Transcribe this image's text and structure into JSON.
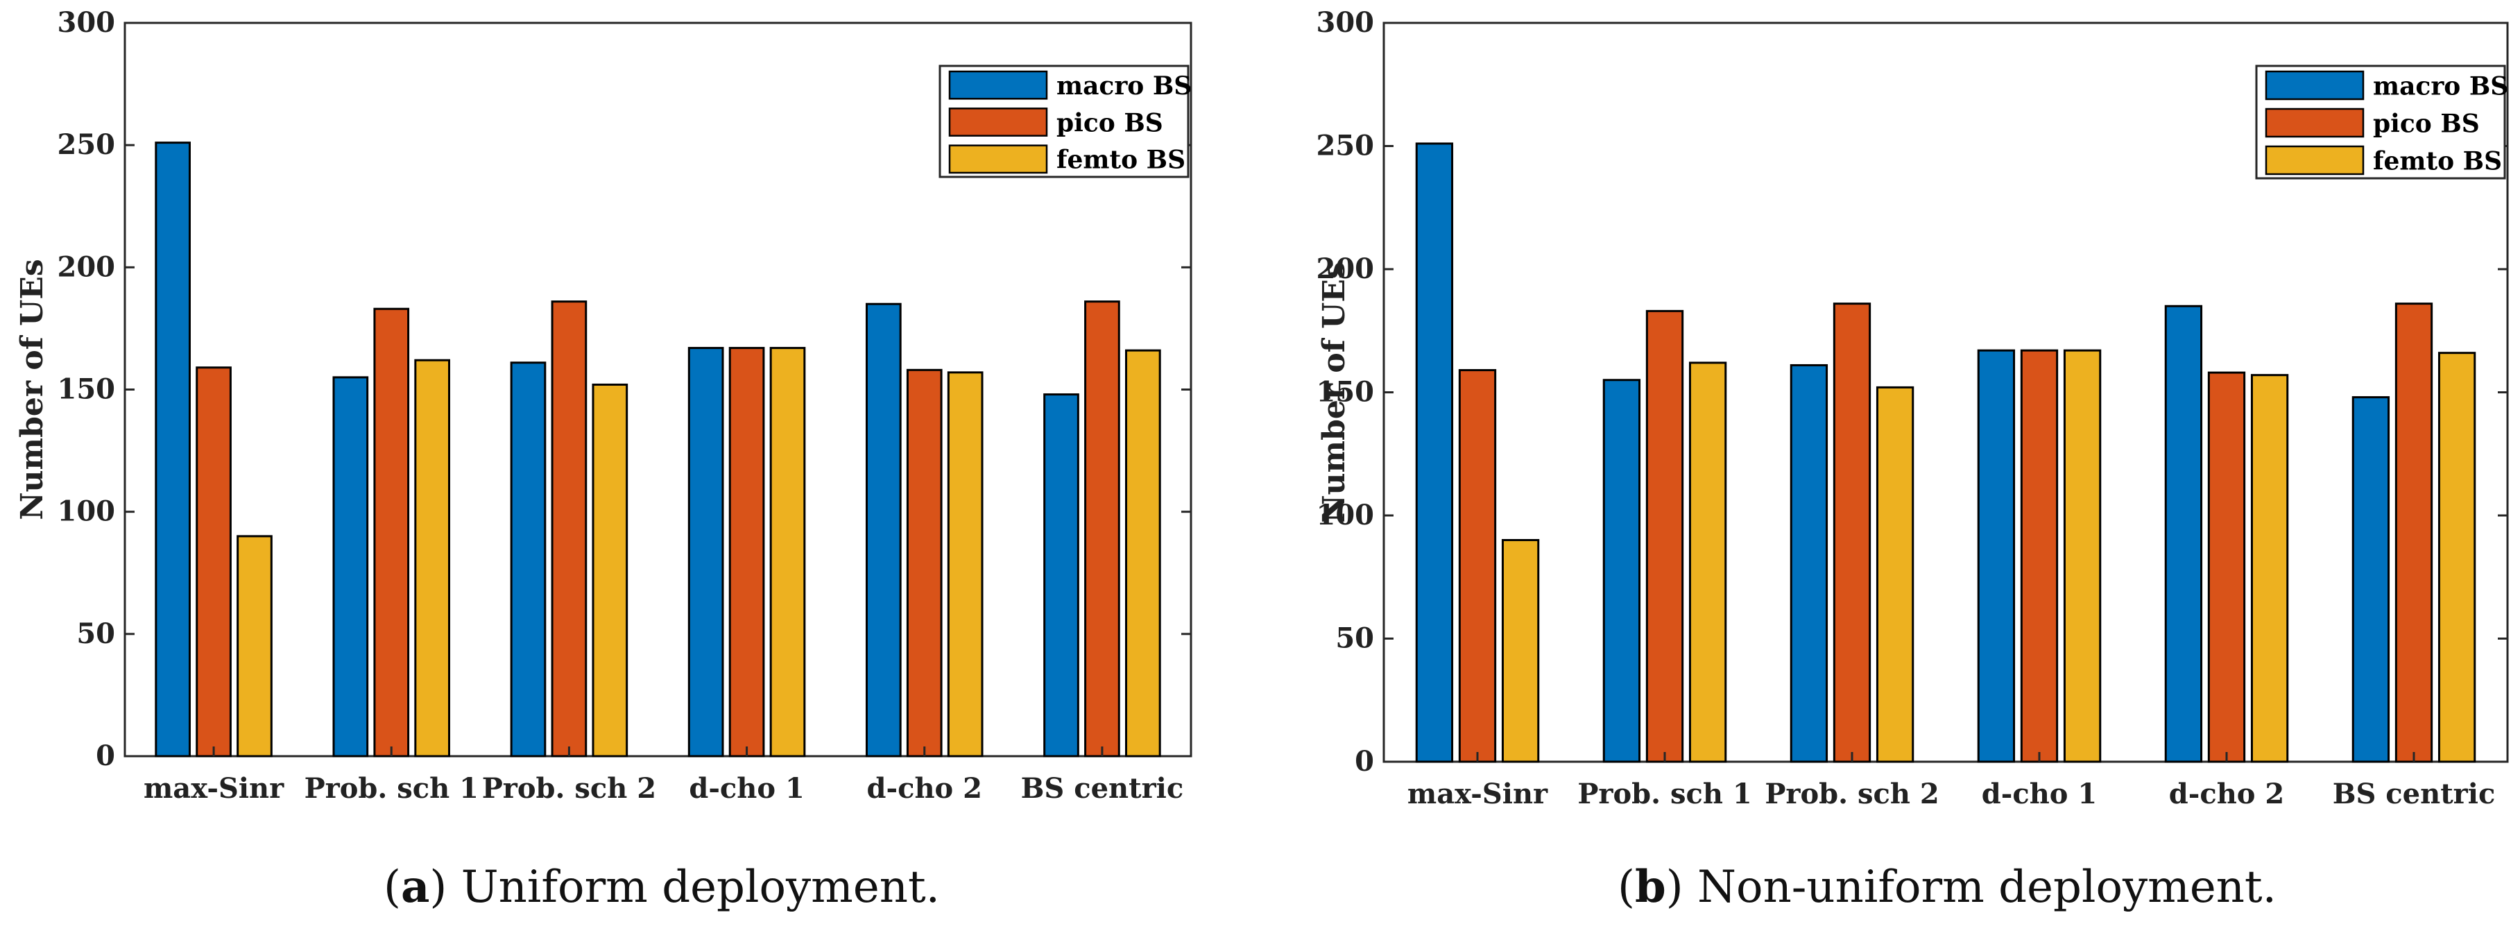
{
  "chart_data": [
    {
      "type": "bar",
      "ylabel": "Number of UEs",
      "xlabel": "",
      "ylim": [
        0,
        300
      ],
      "yticks": [
        0,
        50,
        100,
        150,
        200,
        250,
        300
      ],
      "categories": [
        "max-Sinr",
        "Prob. sch 1",
        "Prob. sch 2",
        "d-cho 1",
        "d-cho 2",
        "BS centric"
      ],
      "series": [
        {
          "name": "macro BS",
          "color": "#0072BD",
          "values": [
            251,
            155,
            161,
            167,
            185,
            148
          ]
        },
        {
          "name": "pico BS",
          "color": "#D95319",
          "values": [
            159,
            183,
            186,
            167,
            158,
            186
          ]
        },
        {
          "name": "femto BS",
          "color": "#EDB120",
          "values": [
            90,
            162,
            152,
            167,
            157,
            166
          ]
        }
      ],
      "legend": "top-right",
      "caption_tag": "a",
      "caption_text": " Uniform deployment."
    },
    {
      "type": "bar",
      "ylabel": "Number of UEs",
      "xlabel": "",
      "ylim": [
        0,
        300
      ],
      "yticks": [
        0,
        50,
        100,
        150,
        200,
        250,
        300
      ],
      "categories": [
        "max-Sinr",
        "Prob. sch 1",
        "Prob. sch 2",
        "d-cho 1",
        "d-cho 2",
        "BS centric"
      ],
      "series": [
        {
          "name": "macro BS",
          "color": "#0072BD",
          "values": [
            251,
            155,
            161,
            167,
            185,
            148
          ]
        },
        {
          "name": "pico BS",
          "color": "#D95319",
          "values": [
            159,
            183,
            186,
            167,
            158,
            186
          ]
        },
        {
          "name": "femto BS",
          "color": "#EDB120",
          "values": [
            90,
            162,
            152,
            167,
            157,
            166
          ]
        }
      ],
      "legend": "top-right",
      "caption_tag": "b",
      "caption_text": " Non-uniform deployment."
    }
  ]
}
